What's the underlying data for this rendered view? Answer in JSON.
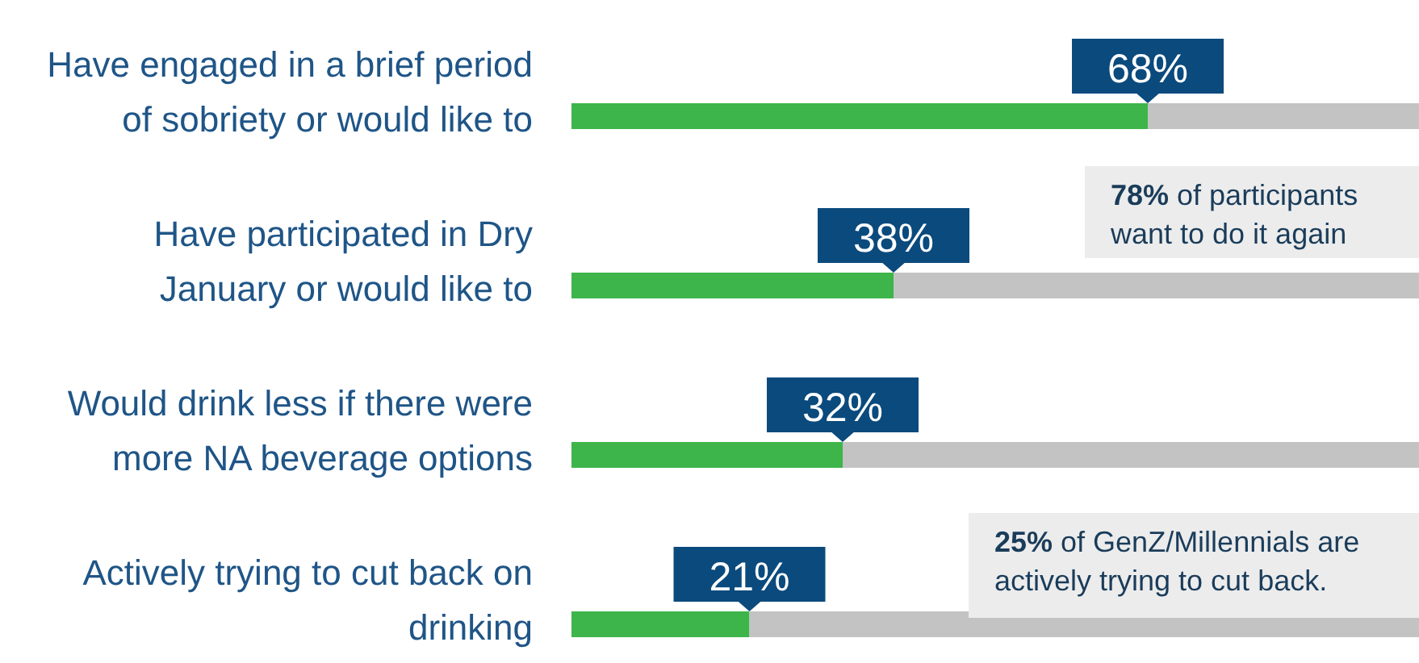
{
  "chart_data": {
    "type": "bar",
    "orientation": "horizontal",
    "categories": [
      "Have engaged in a brief period of sobriety or would like to",
      "Have participated in Dry January or would like to",
      "Would drink less if there were more NA beverage options",
      "Actively trying to cut back on drinking"
    ],
    "values": [
      68,
      38,
      32,
      21
    ],
    "value_labels": [
      "68%",
      "38%",
      "32%",
      "21%"
    ],
    "color": "#3db54a",
    "xlim": [
      0,
      100
    ],
    "tick_labels": "y",
    "annotations": [
      "78% of participants want to do it again",
      "25% of GenZ/Millennials are actively trying to cut back."
    ]
  }
}
